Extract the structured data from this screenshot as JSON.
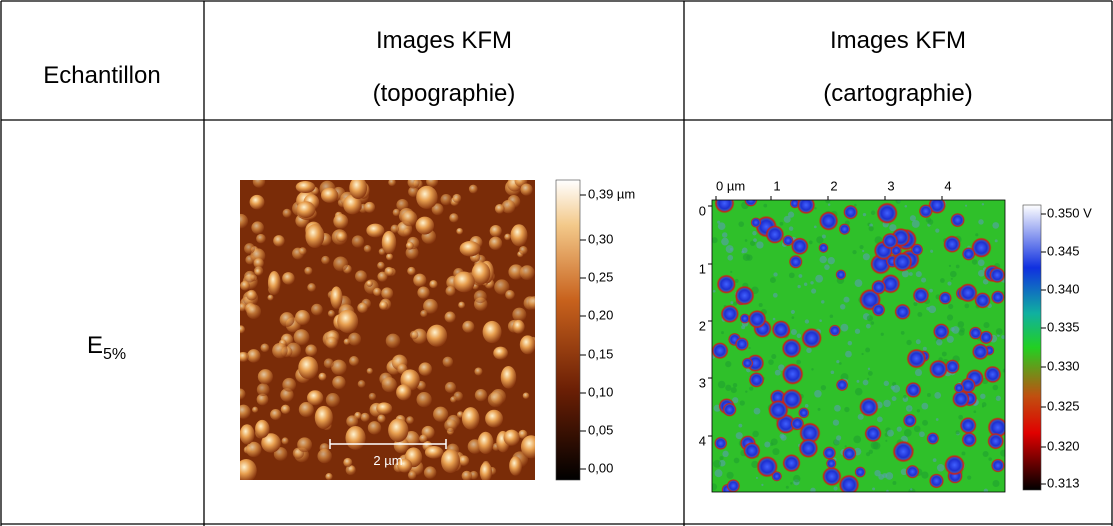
{
  "table": {
    "header": {
      "sample": "Echantillon",
      "topo": [
        "Images KFM",
        "(topographie)"
      ],
      "carto": [
        "Images KFM",
        "(cartographie)"
      ]
    },
    "rows": [
      {
        "sample": {
          "base": "E",
          "sub": "5%"
        },
        "topo": {
          "scale_bar": "2 µm",
          "colorbar": [
            "0,39 µm",
            "0,30",
            "0,25",
            "0,20",
            "0,15",
            "0,10",
            "0,05",
            "0,00"
          ]
        },
        "carto": {
          "x_axis": [
            "0 µm",
            "1",
            "2",
            "3",
            "4"
          ],
          "y_axis": [
            "0",
            "1",
            "2",
            "3",
            "4"
          ],
          "colorbar": [
            "0.350 V",
            "0.345",
            "0.340",
            "0.335",
            "0.330",
            "0.325",
            "0.320",
            "0.313"
          ]
        }
      }
    ]
  }
}
